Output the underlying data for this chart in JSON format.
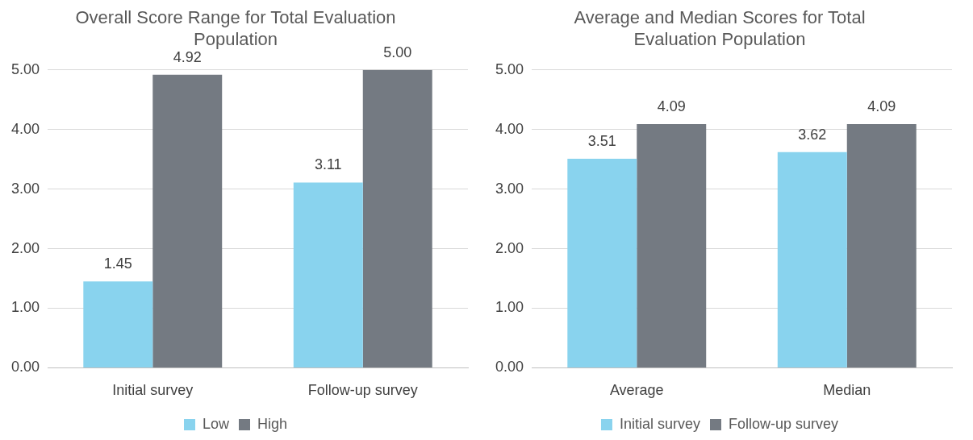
{
  "chart_data": [
    {
      "type": "bar",
      "title": "Overall Score Range for Total Evaluation Population",
      "categories": [
        "Initial survey",
        "Follow-up survey"
      ],
      "series": [
        {
          "name": "Low",
          "color": "#89d3ee",
          "values": [
            1.45,
            3.11
          ],
          "value_labels": [
            "1.45",
            "3.11"
          ]
        },
        {
          "name": "High",
          "color": "#747a82",
          "values": [
            4.92,
            5.0
          ],
          "value_labels": [
            "4.92",
            "5.00"
          ]
        }
      ],
      "ylim": [
        0,
        5
      ],
      "yticks": [
        {
          "value": 0,
          "label": "0.00"
        },
        {
          "value": 1,
          "label": "1.00"
        },
        {
          "value": 2,
          "label": "2.00"
        },
        {
          "value": 3,
          "label": "3.00"
        },
        {
          "value": 4,
          "label": "4.00"
        },
        {
          "value": 5,
          "label": "5.00"
        }
      ],
      "grid": "y",
      "legend": "bottom"
    },
    {
      "type": "bar",
      "title": "Average and Median Scores for Total Evaluation Population",
      "categories": [
        "Average",
        "Median"
      ],
      "series": [
        {
          "name": "Initial survey",
          "color": "#89d3ee",
          "values": [
            3.51,
            3.62
          ],
          "value_labels": [
            "3.51",
            "3.62"
          ]
        },
        {
          "name": "Follow-up survey",
          "color": "#747a82",
          "values": [
            4.09,
            4.09
          ],
          "value_labels": [
            "4.09",
            "4.09"
          ]
        }
      ],
      "ylim": [
        0,
        5
      ],
      "yticks": [
        {
          "value": 0,
          "label": "0.00"
        },
        {
          "value": 1,
          "label": "1.00"
        },
        {
          "value": 2,
          "label": "2.00"
        },
        {
          "value": 3,
          "label": "3.00"
        },
        {
          "value": 4,
          "label": "4.00"
        },
        {
          "value": 5,
          "label": "5.00"
        }
      ],
      "grid": "y",
      "legend": "bottom"
    }
  ]
}
